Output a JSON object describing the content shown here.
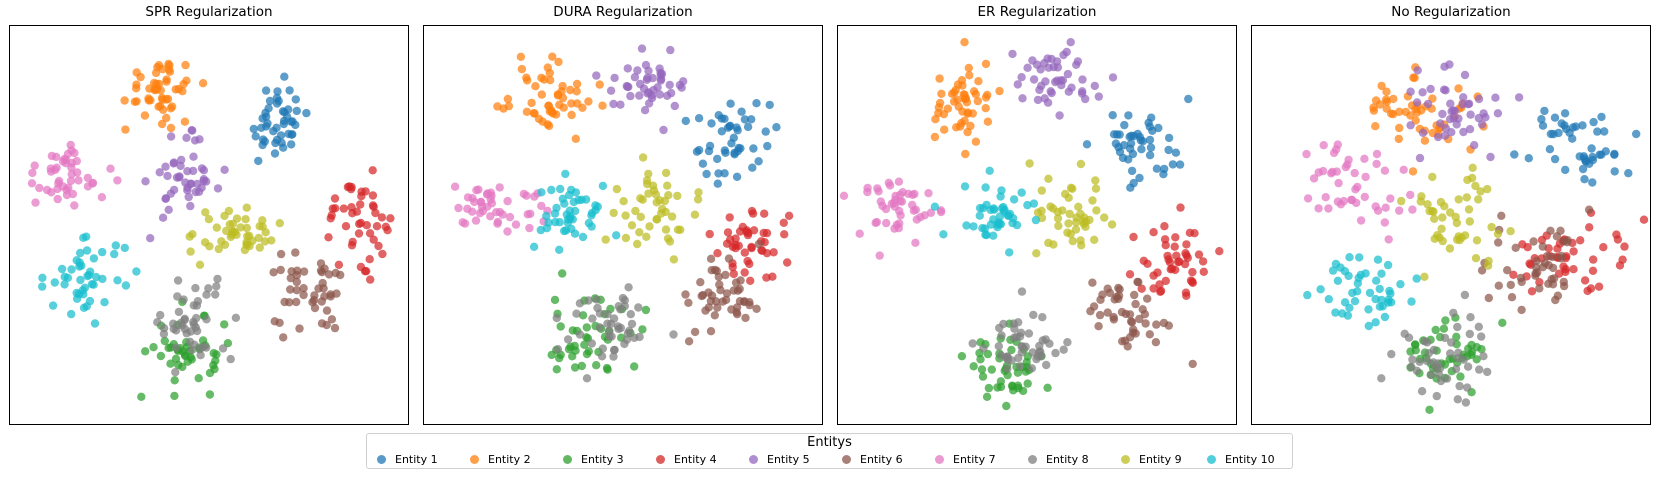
{
  "chart_data": {
    "type": "scatter",
    "legend": {
      "title": "Entitys",
      "placement": "bottom-center",
      "entries": [
        {
          "name": "Entity 1",
          "color": "#1f77b4"
        },
        {
          "name": "Entity 2",
          "color": "#ff7f0e"
        },
        {
          "name": "Entity 3",
          "color": "#2ca02c"
        },
        {
          "name": "Entity 4",
          "color": "#d62728"
        },
        {
          "name": "Entity 5",
          "color": "#9467bd"
        },
        {
          "name": "Entity 6",
          "color": "#8c564b"
        },
        {
          "name": "Entity 7",
          "color": "#e377c2"
        },
        {
          "name": "Entity 8",
          "color": "#7f7f7f"
        },
        {
          "name": "Entity 9",
          "color": "#bcbd22"
        },
        {
          "name": "Entity 10",
          "color": "#17becf"
        }
      ]
    },
    "xlim": [
      0,
      100
    ],
    "ylim": [
      0,
      100
    ],
    "axes_visible": false,
    "grid": false,
    "panels": [
      {
        "title": "SPR Regularization",
        "clusters": [
          {
            "entity": "Entity 1",
            "center": [
              67,
              75
            ],
            "spread": [
              4,
              5
            ],
            "n": 45
          },
          {
            "entity": "Entity 2",
            "center": [
              38,
              85
            ],
            "spread": [
              4.5,
              4
            ],
            "n": 50
          },
          {
            "entity": "Entity 3",
            "center": [
              46,
              17
            ],
            "spread": [
              5,
              5
            ],
            "n": 45
          },
          {
            "entity": "Entity 4",
            "center": [
              87,
              52
            ],
            "spread": [
              4,
              5
            ],
            "n": 45
          },
          {
            "entity": "Entity 5",
            "center": [
              44,
              61
            ],
            "spread": [
              4.5,
              5
            ],
            "n": 45
          },
          {
            "entity": "Entity 6",
            "center": [
              75,
              32
            ],
            "spread": [
              5,
              5
            ],
            "n": 45
          },
          {
            "entity": "Entity 7",
            "center": [
              15,
              63
            ],
            "spread": [
              5.5,
              4
            ],
            "n": 45
          },
          {
            "entity": "Entity 8",
            "center": [
              46,
              26
            ],
            "spread": [
              5,
              5
            ],
            "n": 45
          },
          {
            "entity": "Entity 9",
            "center": [
              57,
              48
            ],
            "spread": [
              5,
              3.5
            ],
            "n": 45
          },
          {
            "entity": "Entity 10",
            "center": [
              19,
              37
            ],
            "spread": [
              5,
              4.5
            ],
            "n": 45
          }
        ]
      },
      {
        "title": "DURA Regularization",
        "clusters": [
          {
            "entity": "Entity 1",
            "center": [
              77,
              72
            ],
            "spread": [
              5,
              5
            ],
            "n": 45
          },
          {
            "entity": "Entity 2",
            "center": [
              33,
              82
            ],
            "spread": [
              5,
              4.5
            ],
            "n": 50
          },
          {
            "entity": "Entity 3",
            "center": [
              41,
              22
            ],
            "spread": [
              6,
              5
            ],
            "n": 45
          },
          {
            "entity": "Entity 4",
            "center": [
              82,
              45
            ],
            "spread": [
              5,
              5
            ],
            "n": 45
          },
          {
            "entity": "Entity 5",
            "center": [
              56,
              86
            ],
            "spread": [
              5,
              4
            ],
            "n": 45
          },
          {
            "entity": "Entity 6",
            "center": [
              74,
              33
            ],
            "spread": [
              5,
              5
            ],
            "n": 45
          },
          {
            "entity": "Entity 7",
            "center": [
              18,
              55
            ],
            "spread": [
              6,
              4
            ],
            "n": 45
          },
          {
            "entity": "Entity 8",
            "center": [
              47,
              24
            ],
            "spread": [
              5,
              4.5
            ],
            "n": 45
          },
          {
            "entity": "Entity 9",
            "center": [
              58,
              54
            ],
            "spread": [
              5,
              5
            ],
            "n": 45
          },
          {
            "entity": "Entity 10",
            "center": [
              38,
              53
            ],
            "spread": [
              5,
              4
            ],
            "n": 45
          }
        ]
      },
      {
        "title": "ER Regularization",
        "clusters": [
          {
            "entity": "Entity 1",
            "center": [
              76,
              70
            ],
            "spread": [
              5,
              5
            ],
            "n": 45
          },
          {
            "entity": "Entity 2",
            "center": [
              32,
              81
            ],
            "spread": [
              5,
              5
            ],
            "n": 50
          },
          {
            "entity": "Entity 3",
            "center": [
              42,
              14
            ],
            "spread": [
              5,
              5
            ],
            "n": 45
          },
          {
            "entity": "Entity 4",
            "center": [
              84,
              41
            ],
            "spread": [
              5,
              5
            ],
            "n": 45
          },
          {
            "entity": "Entity 5",
            "center": [
              55,
              87
            ],
            "spread": [
              5,
              4
            ],
            "n": 45
          },
          {
            "entity": "Entity 6",
            "center": [
              73,
              27
            ],
            "spread": [
              5,
              5
            ],
            "n": 45
          },
          {
            "entity": "Entity 7",
            "center": [
              16,
              54
            ],
            "spread": [
              5.5,
              4
            ],
            "n": 45
          },
          {
            "entity": "Entity 8",
            "center": [
              47,
              19
            ],
            "spread": [
              5,
              4.5
            ],
            "n": 45
          },
          {
            "entity": "Entity 9",
            "center": [
              58,
              52
            ],
            "spread": [
              5,
              5
            ],
            "n": 45
          },
          {
            "entity": "Entity 10",
            "center": [
              39,
              51
            ],
            "spread": [
              5,
              4.5
            ],
            "n": 45
          }
        ]
      },
      {
        "title": "No Regularization",
        "clusters": [
          {
            "entity": "Entity 1",
            "center": [
              82,
              70
            ],
            "spread": [
              6,
              5
            ],
            "n": 45
          },
          {
            "entity": "Entity 2",
            "center": [
              42,
              78
            ],
            "spread": [
              6,
              6
            ],
            "n": 50
          },
          {
            "entity": "Entity 3",
            "center": [
              48,
              17
            ],
            "spread": [
              6,
              5
            ],
            "n": 45
          },
          {
            "entity": "Entity 4",
            "center": [
              80,
              42
            ],
            "spread": [
              7,
              5
            ],
            "n": 45
          },
          {
            "entity": "Entity 5",
            "center": [
              51,
              79
            ],
            "spread": [
              6,
              6
            ],
            "n": 45
          },
          {
            "entity": "Entity 6",
            "center": [
              72,
              40
            ],
            "spread": [
              6,
              5
            ],
            "n": 45
          },
          {
            "entity": "Entity 7",
            "center": [
              24,
              59
            ],
            "spread": [
              7,
              6
            ],
            "n": 45
          },
          {
            "entity": "Entity 8",
            "center": [
              48,
              18
            ],
            "spread": [
              6,
              5
            ],
            "n": 45
          },
          {
            "entity": "Entity 9",
            "center": [
              51,
              53
            ],
            "spread": [
              6,
              6
            ],
            "n": 45
          },
          {
            "entity": "Entity 10",
            "center": [
              28,
              34
            ],
            "spread": [
              6,
              5
            ],
            "n": 45
          }
        ]
      }
    ]
  }
}
